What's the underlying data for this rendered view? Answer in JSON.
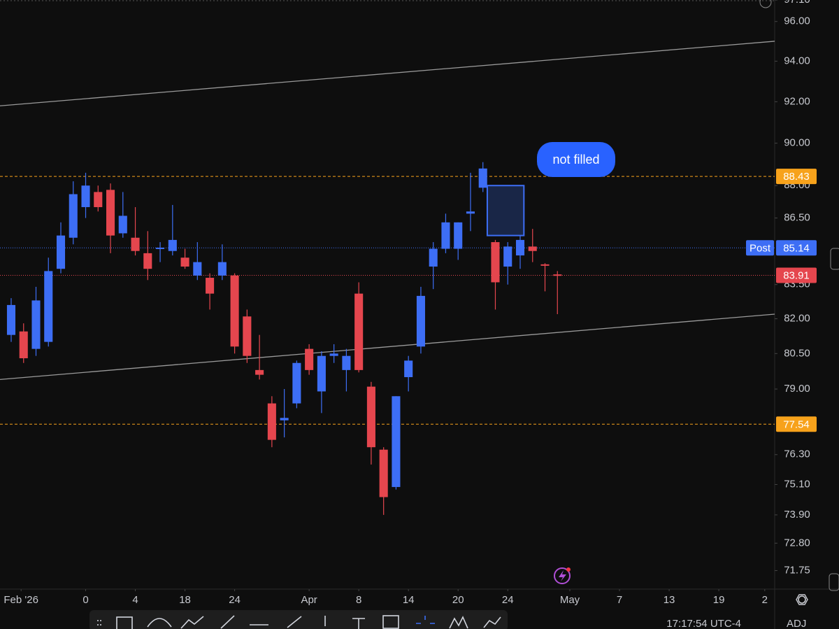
{
  "chart_data": {
    "type": "candlestick",
    "log_scale": true,
    "grid": false,
    "up_color": "#3d6ef5",
    "down_color": "#e5464e",
    "x": [
      -6,
      -5,
      -4,
      -3,
      -2,
      -1,
      0,
      1,
      2,
      3,
      4,
      5,
      6,
      7,
      8,
      9,
      10,
      11,
      12,
      13,
      14,
      15,
      16,
      17,
      18,
      19,
      20,
      21,
      22,
      23,
      24,
      25,
      26,
      27,
      28,
      29,
      30,
      31,
      32,
      33,
      34,
      35,
      36,
      37,
      38
    ],
    "open": [
      81.3,
      81.45,
      80.7,
      81.0,
      84.2,
      85.6,
      87.0,
      87.7,
      87.8,
      85.8,
      85.6,
      84.9,
      85.1,
      85.0,
      84.7,
      83.9,
      83.8,
      83.9,
      83.9,
      82.1,
      79.8,
      78.4,
      77.7,
      78.4,
      80.7,
      78.9,
      80.4,
      79.8,
      83.1,
      79.1,
      76.5,
      75.0,
      79.5,
      80.8,
      84.3,
      85.1,
      85.1,
      86.7,
      87.9,
      85.4,
      84.3,
      84.8,
      85.2,
      84.4,
      83.95
    ],
    "high": [
      82.9,
      81.8,
      83.4,
      84.7,
      86.3,
      88.2,
      88.6,
      88.0,
      88.1,
      87.7,
      87.0,
      85.9,
      85.4,
      87.1,
      85.1,
      85.4,
      84.0,
      85.3,
      84.0,
      82.4,
      81.3,
      78.7,
      79.0,
      80.2,
      80.9,
      80.6,
      80.9,
      80.7,
      83.6,
      79.3,
      76.6,
      78.7,
      80.4,
      83.4,
      85.4,
      86.7,
      86.3,
      88.6,
      89.1,
      85.5,
      85.4,
      85.7,
      86.0,
      84.45,
      84.1
    ],
    "low": [
      81.0,
      80.1,
      80.4,
      80.8,
      84.0,
      85.3,
      86.5,
      86.8,
      84.9,
      85.6,
      84.8,
      83.7,
      84.5,
      84.8,
      84.2,
      83.7,
      82.4,
      83.7,
      80.5,
      80.1,
      79.4,
      76.6,
      77.0,
      78.2,
      79.6,
      78.0,
      80.1,
      78.9,
      79.7,
      75.9,
      73.9,
      74.9,
      78.9,
      80.5,
      83.3,
      84.9,
      84.6,
      85.9,
      87.7,
      82.4,
      83.5,
      84.2,
      84.5,
      83.2,
      82.2
    ],
    "close": [
      82.6,
      80.3,
      82.8,
      84.1,
      85.7,
      87.6,
      88.0,
      87.0,
      85.7,
      86.6,
      85.0,
      84.2,
      85.15,
      85.5,
      84.3,
      84.5,
      83.1,
      84.5,
      80.8,
      80.4,
      79.6,
      76.9,
      77.8,
      80.1,
      79.8,
      80.4,
      80.5,
      80.4,
      79.8,
      76.6,
      74.6,
      78.7,
      80.2,
      83.0,
      85.1,
      86.3,
      86.3,
      86.8,
      88.8,
      83.6,
      85.2,
      85.5,
      85.0,
      84.35,
      83.91
    ],
    "xlim": [
      -6.9,
      55.5
    ],
    "xticks": [
      {
        "value": -5.2,
        "label": "Feb '26"
      },
      0,
      4,
      {
        "value": 8,
        "label": "18"
      },
      {
        "value": 12,
        "label": "24"
      },
      {
        "value": 18,
        "label": "Apr"
      },
      {
        "value": 22,
        "label": "8"
      },
      {
        "value": 26,
        "label": "14"
      },
      {
        "value": 30,
        "label": "20"
      },
      {
        "value": 34,
        "label": "24"
      },
      {
        "value": 39,
        "label": "May"
      },
      {
        "value": 43,
        "label": "7"
      },
      {
        "value": 47,
        "label": "13"
      },
      {
        "value": 51,
        "label": "19"
      },
      {
        "value": 54.7,
        "label": "2"
      }
    ],
    "ylim": [
      71.1,
      97.1
    ],
    "yticks": [
      {
        "value": 97.1,
        "label": "97.10"
      },
      {
        "value": 96,
        "label": "96.00"
      },
      {
        "value": 94,
        "label": "94.00"
      },
      {
        "value": 92,
        "label": "92.00"
      },
      {
        "value": 90,
        "label": "90.00"
      },
      {
        "value": 88,
        "label": "88.00"
      },
      {
        "value": 86.5,
        "label": "86.50"
      },
      {
        "value": 83.5,
        "label": "83.50"
      },
      {
        "value": 82,
        "label": "82.00"
      },
      {
        "value": 80.5,
        "label": "80.50"
      },
      {
        "value": 79,
        "label": "79.00"
      },
      {
        "value": 76.3,
        "label": "76.30"
      },
      {
        "value": 75.1,
        "label": "75.10"
      },
      {
        "value": 73.9,
        "label": "73.90"
      },
      {
        "value": 72.8,
        "label": "72.80"
      },
      {
        "value": 71.75,
        "label": "71.75"
      }
    ],
    "price_lines": [
      {
        "value": 88.43,
        "color": "#f7a21b",
        "style": "dashed"
      },
      {
        "value": 85.14,
        "label": "Post",
        "color": "#3d6ef5",
        "style": "dotted"
      },
      {
        "value": 83.91,
        "color": "#e5464e",
        "style": "dotted"
      },
      {
        "value": 77.54,
        "color": "#f7a21b",
        "style": "dashed"
      }
    ],
    "trend_lines": [
      {
        "x": [
          -6.9,
          55.5
        ],
        "y": [
          91.8,
          95.0
        ],
        "color": "#9a9a9a"
      },
      {
        "x": [
          -6.9,
          55.5
        ],
        "y": [
          79.4,
          82.2
        ],
        "color": "#9a9a9a"
      }
    ],
    "box": {
      "x": [
        32.35,
        35.3
      ],
      "y": [
        85.7,
        88.0
      ],
      "color": "#3d6ef5"
    },
    "annotation": "not filled",
    "time": "17:17:54 UTC-4",
    "adj": "ADJ"
  }
}
